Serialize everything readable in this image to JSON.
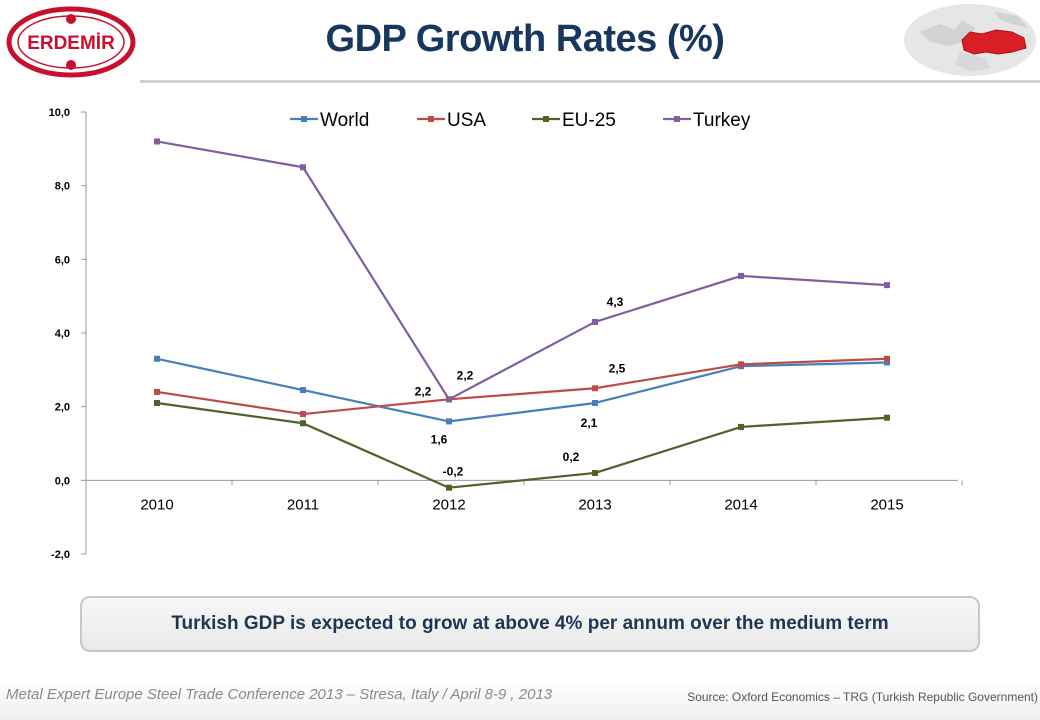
{
  "header": {
    "title": "GDP Growth Rates (%)",
    "logo_text": "ERDEMİR",
    "logo_color": "#c8102e",
    "title_color": "#17375e"
  },
  "note": {
    "text": "Turkish GDP is expected to grow at above 4% per annum over the medium term"
  },
  "footer": {
    "conference": "Metal Expert Europe Steel Trade Conference 2013 – Stresa, Italy / April 8-9 , 2013",
    "source": "Source: Oxford Economics – TRG (Turkish Republic Government)"
  },
  "chart_data": {
    "type": "line",
    "title": "",
    "xlabel": "",
    "ylabel": "",
    "categories": [
      "2010",
      "2011",
      "2012",
      "2013",
      "2014",
      "2015"
    ],
    "ylim": [
      -2.0,
      10.0
    ],
    "yticks": [
      "10,0",
      "8,0",
      "6,0",
      "4,0",
      "2,0",
      "0,0",
      "-2,0"
    ],
    "ytick_values": [
      10,
      8,
      6,
      4,
      2,
      0,
      -2
    ],
    "grid": false,
    "legend_position": "top",
    "series": [
      {
        "name": "World",
        "color": "#4a7ebb",
        "values": [
          3.3,
          2.45,
          1.6,
          2.1,
          3.1,
          3.2
        ]
      },
      {
        "name": "USA",
        "color": "#be4b48",
        "values": [
          2.4,
          1.8,
          2.2,
          2.5,
          3.15,
          3.3
        ]
      },
      {
        "name": "EU-25",
        "color": "#4f6228",
        "values": [
          2.1,
          1.55,
          -0.2,
          0.2,
          1.45,
          1.7
        ]
      },
      {
        "name": "Turkey",
        "color": "#7f5fa0",
        "values": [
          9.2,
          8.5,
          2.2,
          4.3,
          5.55,
          5.3
        ]
      }
    ],
    "data_labels": [
      {
        "series": "World",
        "category": "2012",
        "text": "1,6"
      },
      {
        "series": "World",
        "category": "2013",
        "text": "2,1"
      },
      {
        "series": "USA",
        "category": "2012",
        "text": "2,2"
      },
      {
        "series": "USA",
        "category": "2013",
        "text": "2,5"
      },
      {
        "series": "EU-25",
        "category": "2012",
        "text": "-0,2"
      },
      {
        "series": "EU-25",
        "category": "2013",
        "text": "0,2"
      },
      {
        "series": "Turkey",
        "category": "2012",
        "text": "2,2"
      },
      {
        "series": "Turkey",
        "category": "2013",
        "text": "4,3"
      }
    ]
  }
}
